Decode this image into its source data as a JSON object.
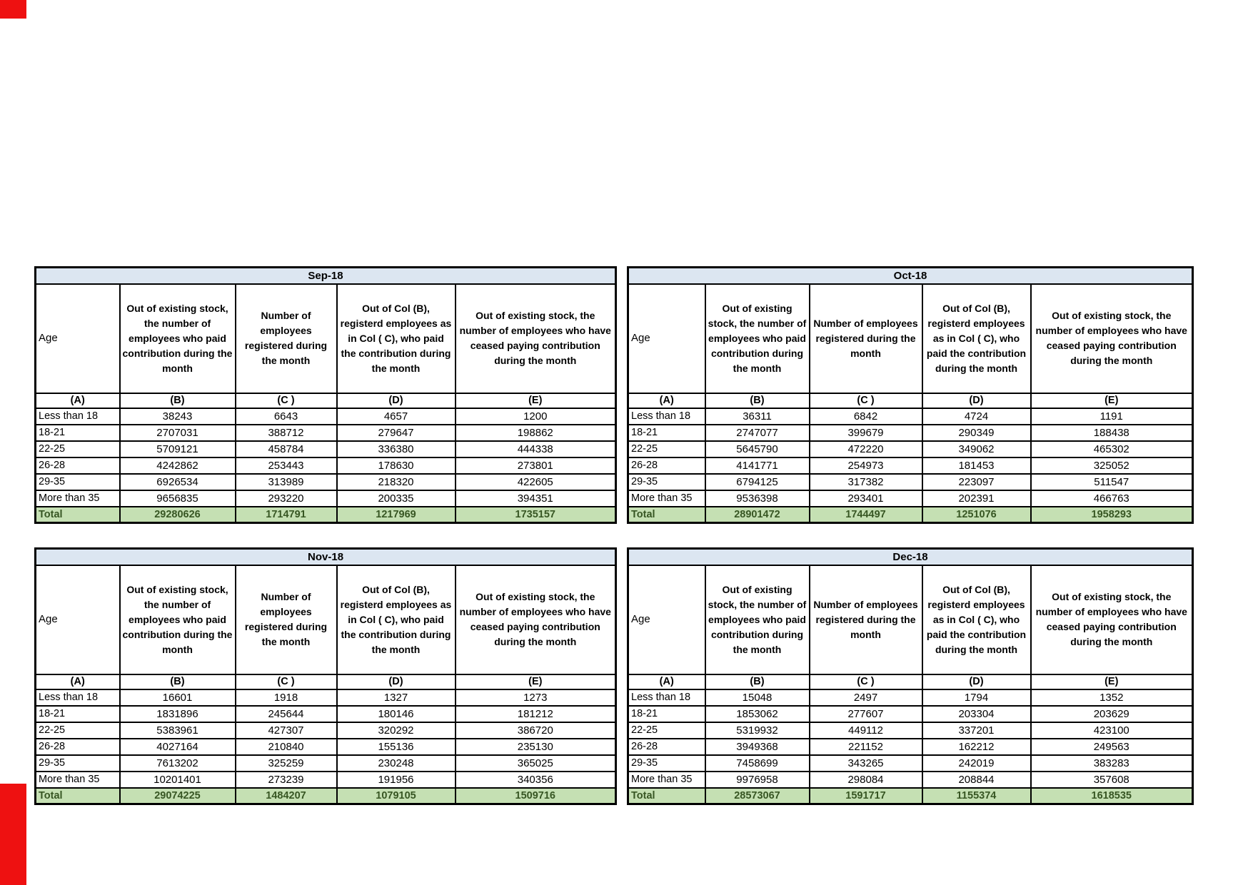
{
  "page": {
    "colors": {
      "month_header_bg": "#dce6f1",
      "total_row_bg": "#c5e0b3",
      "total_row_text": "#375623",
      "red_bar": "#ee1111",
      "border": "#000000"
    }
  },
  "column_headers": [
    "Age",
    "Out of existing stock, the number of employees who paid contribution during the month",
    "Number of employees registered during the month",
    "Out of Col (B), registerd employees as in Col ( C), who paid the contribution during the month",
    "Out of existing stock, the number of employees who have ceased paying contribution during the month"
  ],
  "column_letters": [
    "(A)",
    "(B)",
    "(C )",
    "(D)",
    "(E)"
  ],
  "total_label": "Total",
  "tables": [
    {
      "month": "Sep-18",
      "rows": [
        {
          "age": "Less than 18",
          "values": [
            "38243",
            "6643",
            "4657",
            "1200"
          ]
        },
        {
          "age": "18-21",
          "values": [
            "2707031",
            "388712",
            "279647",
            "198862"
          ]
        },
        {
          "age": "22-25",
          "values": [
            "5709121",
            "458784",
            "336380",
            "444338"
          ]
        },
        {
          "age": "26-28",
          "values": [
            "4242862",
            "253443",
            "178630",
            "273801"
          ]
        },
        {
          "age": "29-35",
          "values": [
            "6926534",
            "313989",
            "218320",
            "422605"
          ]
        },
        {
          "age": "More than 35",
          "values": [
            "9656835",
            "293220",
            "200335",
            "394351"
          ]
        }
      ],
      "total": [
        "29280626",
        "1714791",
        "1217969",
        "1735157"
      ]
    },
    {
      "month": "Oct-18",
      "rows": [
        {
          "age": "Less than 18",
          "values": [
            "36311",
            "6842",
            "4724",
            "1191"
          ]
        },
        {
          "age": "18-21",
          "values": [
            "2747077",
            "399679",
            "290349",
            "188438"
          ]
        },
        {
          "age": "22-25",
          "values": [
            "5645790",
            "472220",
            "349062",
            "465302"
          ]
        },
        {
          "age": "26-28",
          "values": [
            "4141771",
            "254973",
            "181453",
            "325052"
          ]
        },
        {
          "age": "29-35",
          "values": [
            "6794125",
            "317382",
            "223097",
            "511547"
          ]
        },
        {
          "age": "More than 35",
          "values": [
            "9536398",
            "293401",
            "202391",
            "466763"
          ]
        }
      ],
      "total": [
        "28901472",
        "1744497",
        "1251076",
        "1958293"
      ]
    },
    {
      "month": "Nov-18",
      "rows": [
        {
          "age": "Less than 18",
          "values": [
            "16601",
            "1918",
            "1327",
            "1273"
          ]
        },
        {
          "age": "18-21",
          "values": [
            "1831896",
            "245644",
            "180146",
            "181212"
          ]
        },
        {
          "age": "22-25",
          "values": [
            "5383961",
            "427307",
            "320292",
            "386720"
          ]
        },
        {
          "age": "26-28",
          "values": [
            "4027164",
            "210840",
            "155136",
            "235130"
          ]
        },
        {
          "age": "29-35",
          "values": [
            "7613202",
            "325259",
            "230248",
            "365025"
          ]
        },
        {
          "age": "More than 35",
          "values": [
            "10201401",
            "273239",
            "191956",
            "340356"
          ]
        }
      ],
      "total": [
        "29074225",
        "1484207",
        "1079105",
        "1509716"
      ]
    },
    {
      "month": "Dec-18",
      "rows": [
        {
          "age": "Less than 18",
          "values": [
            "15048",
            "2497",
            "1794",
            "1352"
          ]
        },
        {
          "age": "18-21",
          "values": [
            "1853062",
            "277607",
            "203304",
            "203629"
          ]
        },
        {
          "age": "22-25",
          "values": [
            "5319932",
            "449112",
            "337201",
            "423100"
          ]
        },
        {
          "age": "26-28",
          "values": [
            "3949368",
            "221152",
            "162212",
            "249563"
          ]
        },
        {
          "age": "29-35",
          "values": [
            "7458699",
            "343265",
            "242019",
            "383283"
          ]
        },
        {
          "age": "More than 35",
          "values": [
            "9976958",
            "298084",
            "208844",
            "357608"
          ]
        }
      ],
      "total": [
        "28573067",
        "1591717",
        "1155374",
        "1618535"
      ]
    }
  ]
}
